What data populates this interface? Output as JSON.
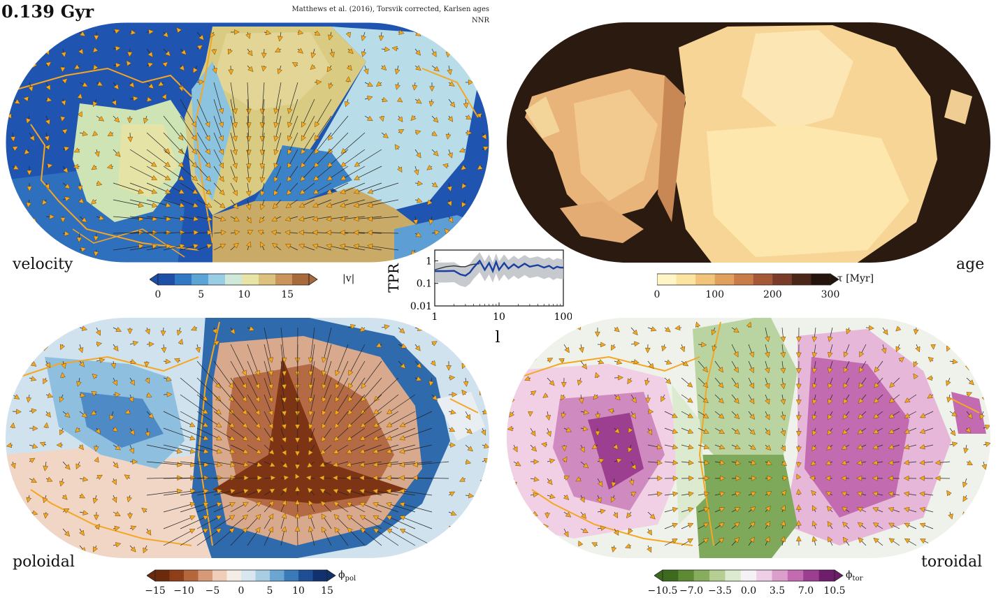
{
  "header": {
    "time": "0.139 Gyr",
    "reference": "Matthews et al. (2016), Torsvik corrected, Karlsen ages",
    "frame": "NNR"
  },
  "panels": {
    "velocity": {
      "label": "velocity",
      "cbar_title": "|v|",
      "cbar_ticks": [
        "0",
        "5",
        "10",
        "15"
      ],
      "cbar_colors": [
        "#1d4fa8",
        "#2f78c4",
        "#5aa4d6",
        "#98cde3",
        "#cfe8d8",
        "#e8e4a8",
        "#dcc27c",
        "#c9955a",
        "#a8693c"
      ]
    },
    "age": {
      "label": "age",
      "cbar_title": "τ [Myr]",
      "cbar_ticks": [
        "0",
        "100",
        "200",
        "300"
      ],
      "cbar_colors": [
        "#fff6c8",
        "#fbe4a0",
        "#f2c47a",
        "#e2a05e",
        "#c97b48",
        "#a45838",
        "#7a3c2a",
        "#4a2618",
        "#22140c"
      ]
    },
    "poloidal": {
      "label": "poloidal",
      "cbar_title": "ϕ",
      "cbar_sub": "pol",
      "cbar_ticks": [
        "−15",
        "−10",
        "−5",
        "0",
        "5",
        "10",
        "15"
      ],
      "cbar_colors": [
        "#6b2a0c",
        "#8e3f18",
        "#b5673c",
        "#d79a78",
        "#f0cdb8",
        "#f5ece6",
        "#d8e6ef",
        "#a9cde3",
        "#6aa6d1",
        "#3a7ab8",
        "#1e4f95",
        "#10306e"
      ]
    },
    "toroidal": {
      "label": "toroidal",
      "cbar_title": "ϕ",
      "cbar_sub": "tor",
      "cbar_ticks": [
        "−10.5",
        "−7.0",
        "−3.5",
        "0.0",
        "3.5",
        "7.0",
        "10.5"
      ],
      "cbar_colors": [
        "#3e6a1e",
        "#5e8a34",
        "#86ac5c",
        "#b5cf93",
        "#dcead0",
        "#f6f1f4",
        "#efcfe6",
        "#dc9fcc",
        "#c26bb0",
        "#9c3f90",
        "#6e1d6a"
      ]
    }
  },
  "inset": {
    "ylabel": "TPR",
    "xlabel": "l",
    "y_ticks": [
      "1",
      "0.1",
      "0.01"
    ],
    "x_ticks": [
      "1",
      "10",
      "100"
    ]
  },
  "chart_data": {
    "type": "line",
    "title": "",
    "xlabel": "l",
    "ylabel": "TPR",
    "x_scale": "log",
    "y_scale": "log",
    "xlim": [
      1,
      100
    ],
    "ylim": [
      0.01,
      3
    ],
    "series": [
      {
        "color": "#1a3fa0",
        "x": [
          1,
          1.5,
          2,
          2.5,
          3,
          3.5,
          4,
          5,
          6,
          7,
          8,
          9,
          10,
          12,
          14,
          17,
          20,
          25,
          30,
          40,
          50,
          60,
          70,
          80,
          90,
          100
        ],
        "y": [
          0.35,
          0.35,
          0.36,
          0.25,
          0.22,
          0.3,
          0.5,
          1.0,
          0.4,
          0.8,
          0.35,
          0.9,
          0.4,
          0.8,
          0.45,
          0.7,
          0.5,
          0.75,
          0.55,
          0.65,
          0.5,
          0.6,
          0.45,
          0.55,
          0.5,
          0.5
        ]
      },
      {
        "color": "#333333",
        "x": [
          1,
          1.5,
          2,
          2.5,
          3,
          3.5,
          4,
          5
        ],
        "y": [
          0.4,
          0.55,
          0.6,
          0.55,
          0.55,
          0.65,
          0.7,
          0.75
        ]
      }
    ],
    "band": {
      "color": "#b8bcc0"
    }
  }
}
